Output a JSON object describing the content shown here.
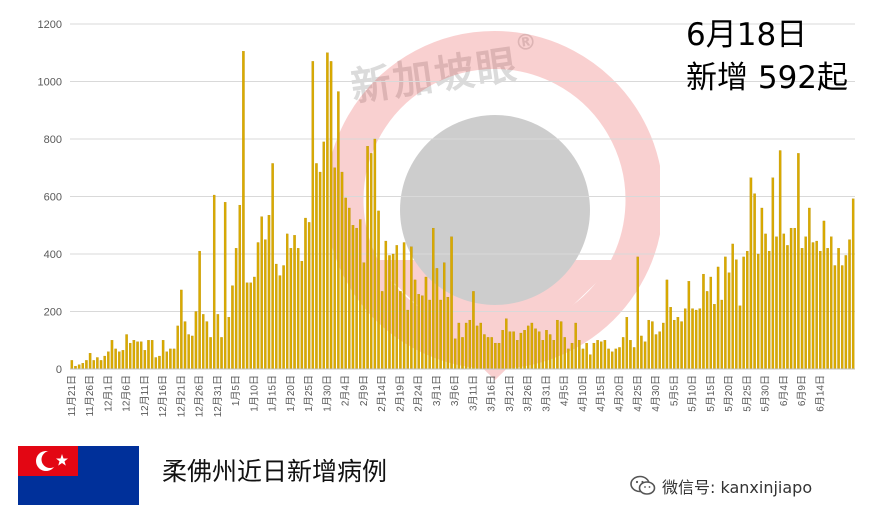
{
  "headline": {
    "line1": "6月18日",
    "line2": "新增 592起"
  },
  "caption": "柔佛州近日新增病例",
  "watermark": {
    "text": "新加坡眼",
    "mark": "®"
  },
  "wechat": {
    "label": "微信号: kanxinjiapo",
    "icon": "wechat-icon"
  },
  "flag": {
    "name": "johor-flag",
    "red": "#e30613",
    "blue": "#00309a",
    "white": "#ffffff"
  },
  "colors": {
    "bar": "#d9aa00"
  },
  "chart_data": {
    "type": "bar",
    "title": "",
    "xlabel": "",
    "ylabel": "",
    "ylim": [
      0,
      1200
    ],
    "yticks": [
      0,
      200,
      400,
      600,
      800,
      1000,
      1200
    ],
    "grid": true,
    "legend": "none",
    "start_label": "11月21日",
    "tick_every": 5,
    "tick_labels": [
      "11月21日",
      "11月26日",
      "12月1日",
      "12月6日",
      "12月11日",
      "12月16日",
      "12月21日",
      "12月26日",
      "12月31日",
      "1月5日",
      "1月10日",
      "1月15日",
      "1月20日",
      "1月25日",
      "1月30日",
      "2月4日",
      "2月9日",
      "2月14日",
      "2月19日",
      "2月24日",
      "3月1日",
      "3月6日",
      "3月11日",
      "3月16日",
      "3月21日",
      "3月26日",
      "3月31日",
      "4月5日",
      "4月10日",
      "4月15日",
      "4月20日",
      "4月25日",
      "4月30日",
      "5月5日",
      "5月10日",
      "5月15日",
      "5月20日",
      "5月25日",
      "5月30日",
      "6月4日",
      "6月9日",
      "6月14日"
    ],
    "values": [
      30,
      10,
      15,
      20,
      30,
      55,
      30,
      40,
      30,
      45,
      60,
      100,
      70,
      60,
      65,
      120,
      90,
      100,
      95,
      95,
      65,
      100,
      100,
      40,
      45,
      100,
      60,
      70,
      70,
      150,
      275,
      165,
      120,
      115,
      200,
      410,
      190,
      165,
      110,
      605,
      190,
      110,
      580,
      180,
      290,
      420,
      570,
      1105,
      300,
      300,
      320,
      440,
      530,
      450,
      535,
      715,
      365,
      325,
      360,
      470,
      420,
      465,
      420,
      375,
      525,
      510,
      1070,
      715,
      685,
      790,
      1100,
      1070,
      700,
      965,
      685,
      595,
      560,
      500,
      490,
      520,
      370,
      775,
      750,
      800,
      550,
      270,
      445,
      395,
      400,
      430,
      270,
      440,
      205,
      425,
      310,
      260,
      255,
      320,
      240,
      490,
      350,
      240,
      370,
      250,
      460,
      105,
      160,
      110,
      160,
      170,
      270,
      150,
      160,
      120,
      110,
      110,
      90,
      90,
      135,
      175,
      130,
      130,
      100,
      125,
      135,
      150,
      160,
      140,
      130,
      100,
      135,
      120,
      100,
      170,
      165,
      110,
      70,
      90,
      160,
      100,
      70,
      90,
      50,
      90,
      100,
      95,
      100,
      70,
      60,
      70,
      75,
      110,
      180,
      100,
      75,
      390,
      115,
      95,
      170,
      165,
      120,
      130,
      160,
      310,
      215,
      170,
      180,
      165,
      210,
      305,
      210,
      205,
      210,
      330,
      270,
      320,
      225,
      355,
      240,
      390,
      335,
      435,
      380,
      220,
      390,
      410,
      665,
      610,
      400,
      560,
      470,
      410,
      665,
      460,
      760,
      470,
      430,
      490,
      490,
      750,
      420,
      460,
      560,
      440,
      445,
      410,
      515,
      420,
      460,
      360,
      420,
      360,
      395,
      450,
      592
    ]
  }
}
